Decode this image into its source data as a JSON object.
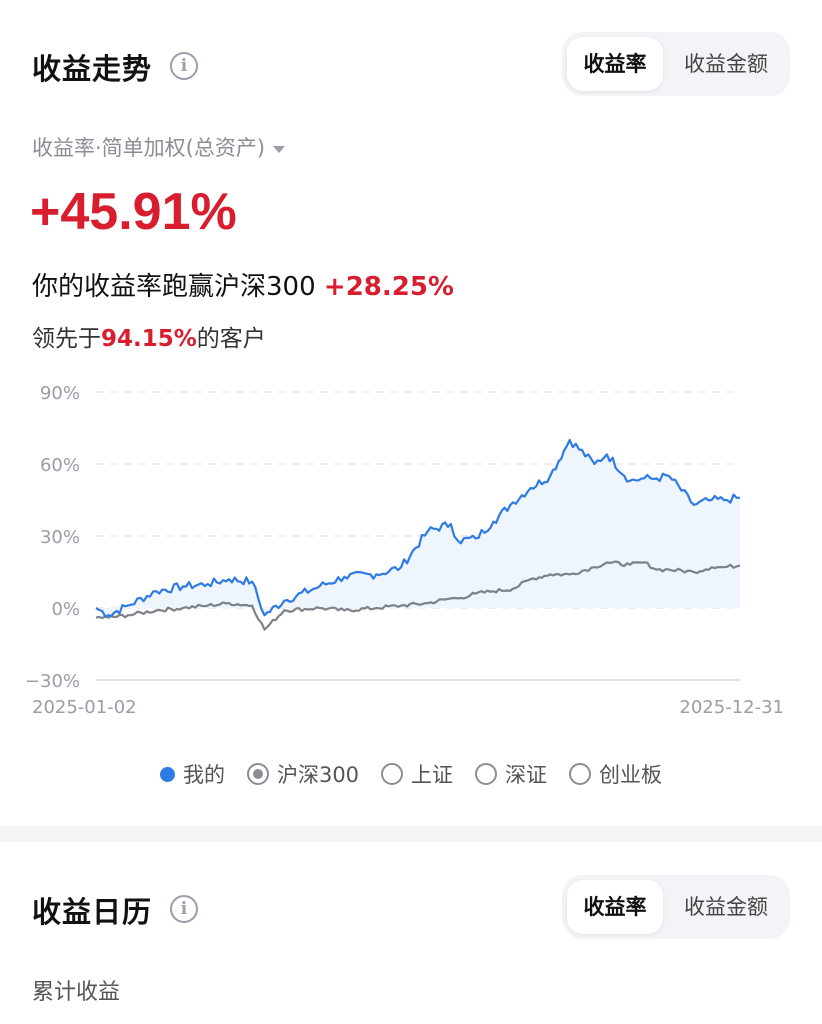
{
  "trend": {
    "title": "收益走势",
    "info_icon": "info-icon",
    "tabs": [
      "收益率",
      "收益金额"
    ],
    "active_tab": 0,
    "subtitle": "收益率·简单加权(总资产)",
    "total_return": "+45.91%",
    "beat_prefix": "你的收益率跑赢沪深300 ",
    "beat_value": "+28.25%",
    "rank_prefix": "领先于",
    "rank_value": "94.15%",
    "rank_suffix": "的客户"
  },
  "chart_data": {
    "type": "line",
    "x_start": "2025-01-02",
    "x_end": "2025-12-31",
    "x_tick_labels": [
      "2025-01-02",
      "2025-12-31"
    ],
    "y_tick_labels": [
      "90%",
      "60%",
      "30%",
      "0%",
      "−30%"
    ],
    "ylim": [
      -30,
      90
    ],
    "yticks": [
      90,
      60,
      30,
      0,
      -30
    ],
    "grid": true,
    "series": [
      {
        "name": "我的",
        "color": "#2f7be6",
        "fill": "#eef5fc",
        "x": [
          "2025-01-02",
          "2025-01-09",
          "2025-01-20",
          "2025-02-05",
          "2025-02-20",
          "2025-03-06",
          "2025-03-18",
          "2025-03-31",
          "2025-04-07",
          "2025-04-18",
          "2025-05-08",
          "2025-05-22",
          "2025-06-09",
          "2025-06-23",
          "2025-07-08",
          "2025-07-21",
          "2025-07-25",
          "2025-08-04",
          "2025-08-14",
          "2025-08-25",
          "2025-09-04",
          "2025-09-15",
          "2025-09-26",
          "2025-10-10",
          "2025-10-17",
          "2025-10-30",
          "2025-11-07",
          "2025-11-14",
          "2025-11-21",
          "2025-12-05",
          "2025-12-15",
          "2025-12-22",
          "2025-12-31"
        ],
        "values": [
          0,
          -3,
          1,
          7,
          9,
          10,
          12,
          11,
          -3,
          3,
          9,
          13,
          14,
          17,
          32,
          35,
          28,
          29,
          36,
          44,
          50,
          55,
          70,
          60,
          64,
          53,
          54,
          54,
          55,
          43,
          45,
          45,
          45.9
        ]
      },
      {
        "name": "沪深300",
        "color": "#7d8188",
        "x": [
          "2025-01-02",
          "2025-01-09",
          "2025-01-20",
          "2025-02-05",
          "2025-02-20",
          "2025-03-06",
          "2025-03-18",
          "2025-03-31",
          "2025-04-07",
          "2025-04-18",
          "2025-05-08",
          "2025-05-22",
          "2025-06-09",
          "2025-06-23",
          "2025-07-08",
          "2025-07-21",
          "2025-07-25",
          "2025-08-04",
          "2025-08-14",
          "2025-08-25",
          "2025-09-04",
          "2025-09-15",
          "2025-09-26",
          "2025-10-10",
          "2025-10-17",
          "2025-10-30",
          "2025-11-07",
          "2025-11-14",
          "2025-11-21",
          "2025-12-05",
          "2025-12-15",
          "2025-12-22",
          "2025-12-31"
        ],
        "values": [
          -4,
          -4,
          -3,
          -1,
          0,
          1,
          2,
          1,
          -9,
          -1,
          0,
          -1,
          0,
          1,
          2,
          4,
          4,
          6,
          7,
          8,
          12,
          14,
          14,
          17,
          19,
          18,
          19,
          16,
          16,
          15,
          17,
          17,
          17.7
        ]
      }
    ]
  },
  "legend": {
    "items": [
      {
        "label": "我的",
        "style": "dot"
      },
      {
        "label": "沪深300",
        "style": "radio-checked"
      },
      {
        "label": "上证",
        "style": "radio"
      },
      {
        "label": "深证",
        "style": "radio"
      },
      {
        "label": "创业板",
        "style": "radio"
      }
    ]
  },
  "calendar": {
    "title": "收益日历",
    "info_icon": "info-icon",
    "tabs": [
      "收益率",
      "收益金额"
    ],
    "active_tab": 0,
    "cumulative_label": "累计收益"
  }
}
